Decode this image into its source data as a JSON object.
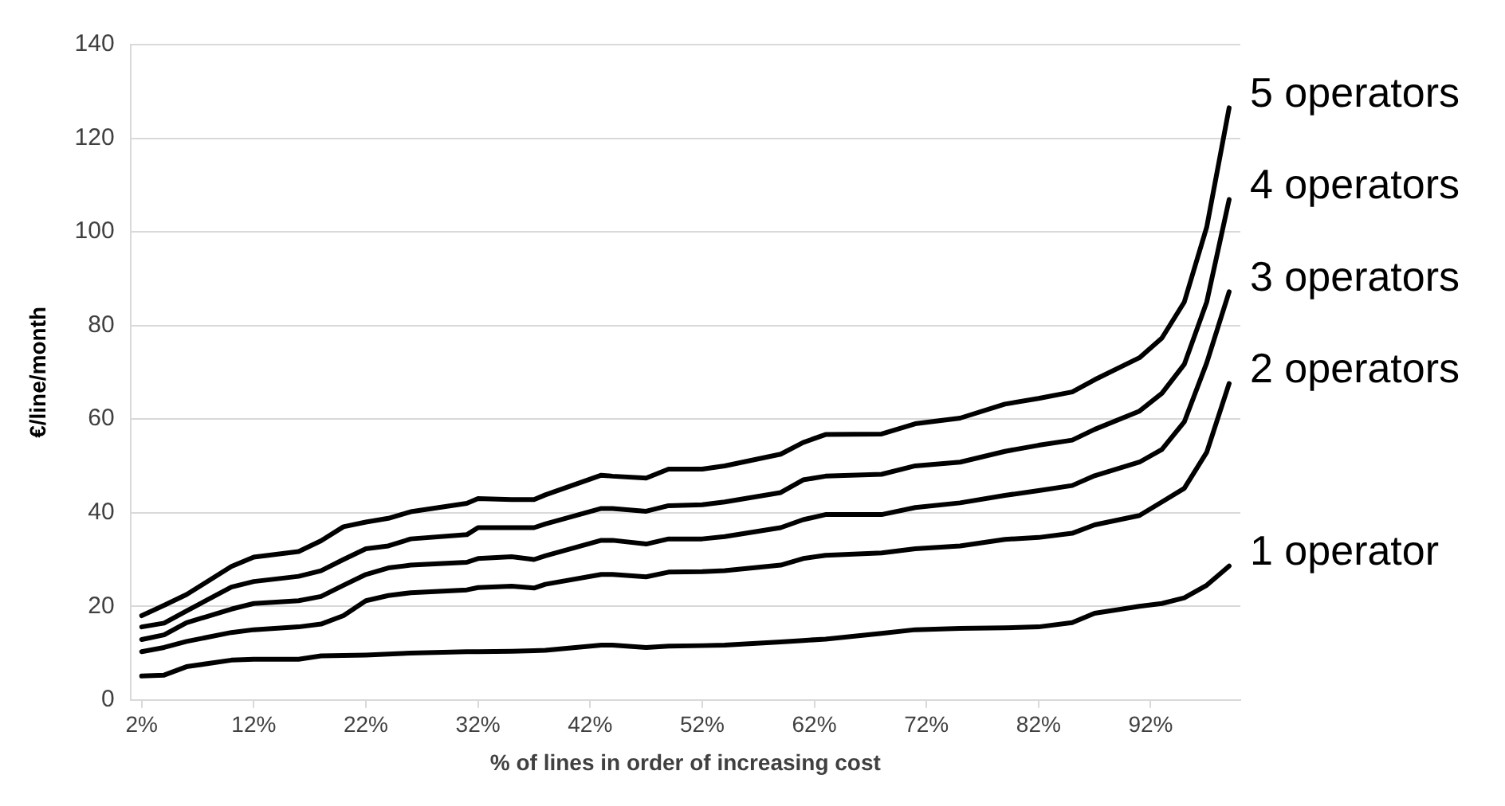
{
  "chart_data": {
    "type": "line",
    "xlabel": "% of lines in order of increasing cost",
    "ylabel": "€/line/month",
    "x": [
      2,
      4,
      6,
      10,
      12,
      16,
      18,
      20,
      22,
      24,
      26,
      31,
      32,
      35,
      37,
      38,
      43,
      44,
      47,
      49,
      52,
      54,
      59,
      61,
      63,
      68,
      71,
      75,
      79,
      82,
      85,
      87,
      91,
      93,
      95,
      97,
      99
    ],
    "series": [
      {
        "name": "5 operators",
        "color": "#000000",
        "values": [
          18,
          20.2,
          22.5,
          28.5,
          30.5,
          31.7,
          34,
          37,
          38,
          38.8,
          40.2,
          42,
          43,
          42.8,
          42.8,
          43.8,
          48,
          47.8,
          47.4,
          49.3,
          49.3,
          50,
          52.5,
          55,
          56.7,
          56.8,
          59,
          60.2,
          63.2,
          64.4,
          65.8,
          68.4,
          73.1,
          77.3,
          85,
          101,
          126.5
        ]
      },
      {
        "name": "4 operators",
        "color": "#000000",
        "values": [
          15.6,
          16.4,
          19,
          24.1,
          25.3,
          26.4,
          27.6,
          30,
          32.3,
          32.9,
          34.4,
          35.3,
          36.8,
          36.8,
          36.8,
          37.6,
          40.9,
          40.9,
          40.3,
          41.5,
          41.7,
          42.3,
          44.3,
          47,
          47.8,
          48.2,
          50,
          50.8,
          53.1,
          54.4,
          55.5,
          57.8,
          61.7,
          65.5,
          71.7,
          85,
          106.9
        ]
      },
      {
        "name": "3 operators",
        "color": "#000000",
        "values": [
          12.9,
          13.9,
          16.5,
          19.4,
          20.6,
          21.2,
          22.1,
          24.5,
          26.8,
          28.2,
          28.8,
          29.4,
          30.2,
          30.6,
          30,
          30.8,
          34.1,
          34.1,
          33.3,
          34.4,
          34.4,
          34.9,
          36.8,
          38.5,
          39.6,
          39.6,
          41.1,
          42.1,
          43.7,
          44.7,
          45.8,
          47.9,
          50.8,
          53.5,
          59.4,
          72,
          87.2
        ]
      },
      {
        "name": "2 operators",
        "color": "#000000",
        "values": [
          10.3,
          11.2,
          12.5,
          14.4,
          15,
          15.6,
          16.2,
          18,
          21.2,
          22.3,
          22.9,
          23.5,
          24,
          24.3,
          23.9,
          24.7,
          26.8,
          26.8,
          26.3,
          27.3,
          27.4,
          27.6,
          28.8,
          30.2,
          30.9,
          31.4,
          32.3,
          32.9,
          34.3,
          34.7,
          35.6,
          37.4,
          39.4,
          42.3,
          45.2,
          52.9,
          67.6
        ]
      },
      {
        "name": "1 operator",
        "color": "#000000",
        "values": [
          5.1,
          5.3,
          7.1,
          8.5,
          8.7,
          8.7,
          9.4,
          9.5,
          9.6,
          9.8,
          10,
          10.3,
          10.3,
          10.4,
          10.5,
          10.6,
          11.7,
          11.7,
          11.2,
          11.5,
          11.6,
          11.7,
          12.4,
          12.7,
          13,
          14.2,
          15,
          15.3,
          15.4,
          15.6,
          16.5,
          18.5,
          20,
          20.6,
          21.8,
          24.5,
          28.6
        ]
      }
    ],
    "xlim": [
      1,
      100
    ],
    "xticks": [
      {
        "value": 2,
        "label": "2%"
      },
      {
        "value": 12,
        "label": "12%"
      },
      {
        "value": 22,
        "label": "22%"
      },
      {
        "value": 32,
        "label": "32%"
      },
      {
        "value": 42,
        "label": "42%"
      },
      {
        "value": 52,
        "label": "52%"
      },
      {
        "value": 62,
        "label": "62%"
      },
      {
        "value": 72,
        "label": "72%"
      },
      {
        "value": 82,
        "label": "82%"
      },
      {
        "value": 92,
        "label": "92%"
      }
    ],
    "ylim": [
      0,
      140
    ],
    "yticks": [
      0,
      20,
      40,
      60,
      80,
      100,
      120,
      140
    ],
    "grid": "y",
    "legend": false,
    "marker": "none",
    "line_style": "solid"
  }
}
